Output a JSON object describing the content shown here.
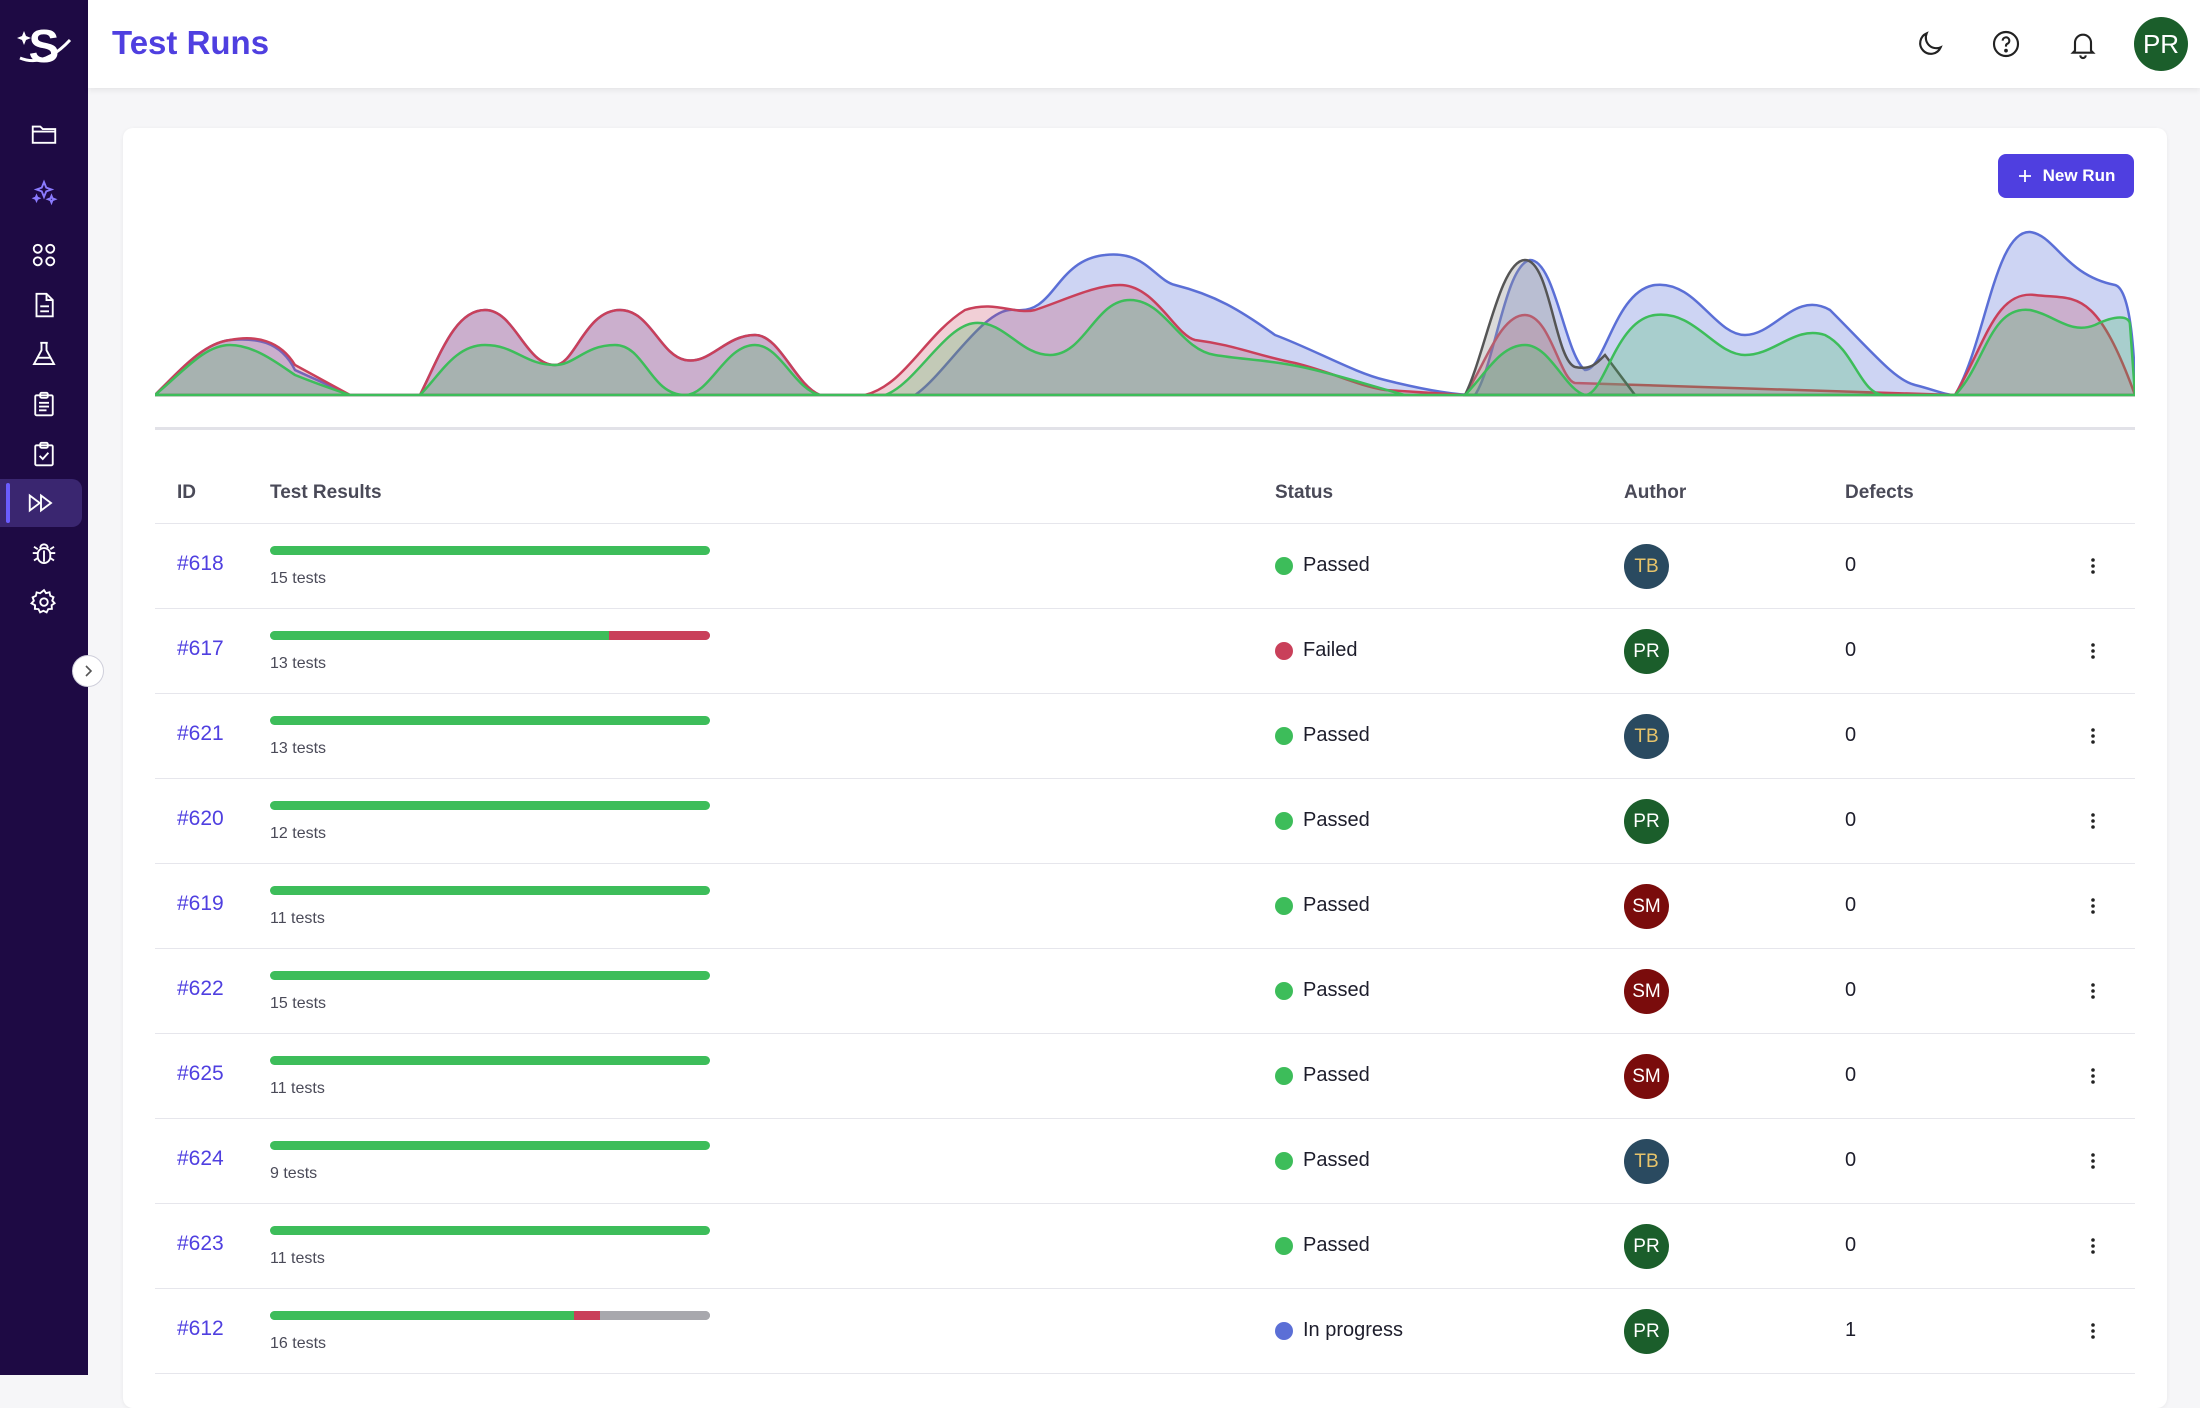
{
  "header": {
    "title": "Test Runs",
    "avatar": "PR"
  },
  "toolbar": {
    "new_run_label": "New Run"
  },
  "colors": {
    "accent": "#4f3fe0",
    "passed": "#3dbd5a",
    "failed": "#c9405a",
    "in_progress": "#5b6fd6",
    "skipped": "#a8a8ad",
    "sidebar": "#1e0a44"
  },
  "sidebar": {
    "items": [
      {
        "name": "folder-icon"
      },
      {
        "name": "sparkles-icon"
      },
      {
        "name": "grid-icon"
      },
      {
        "name": "document-icon"
      },
      {
        "name": "flask-icon"
      },
      {
        "name": "clipboard-list-icon"
      },
      {
        "name": "clipboard-check-icon"
      },
      {
        "name": "fast-forward-icon",
        "active": true
      },
      {
        "name": "bug-icon"
      },
      {
        "name": "gear-icon"
      }
    ]
  },
  "table": {
    "columns": {
      "id": "ID",
      "results": "Test Results",
      "status": "Status",
      "author": "Author",
      "defects": "Defects"
    },
    "rows": [
      {
        "id": "#618",
        "tests": "15 tests",
        "passed": 1,
        "failed": 0,
        "skipped": 0,
        "status": "Passed",
        "author": "TB",
        "defects": "0"
      },
      {
        "id": "#617",
        "tests": "13 tests",
        "passed": 0.77,
        "failed": 0.23,
        "skipped": 0,
        "status": "Failed",
        "author": "PR",
        "defects": "0"
      },
      {
        "id": "#621",
        "tests": "13 tests",
        "passed": 1,
        "failed": 0,
        "skipped": 0,
        "status": "Passed",
        "author": "TB",
        "defects": "0"
      },
      {
        "id": "#620",
        "tests": "12 tests",
        "passed": 1,
        "failed": 0,
        "skipped": 0,
        "status": "Passed",
        "author": "PR",
        "defects": "0"
      },
      {
        "id": "#619",
        "tests": "11 tests",
        "passed": 1,
        "failed": 0,
        "skipped": 0,
        "status": "Passed",
        "author": "SM",
        "defects": "0"
      },
      {
        "id": "#622",
        "tests": "15 tests",
        "passed": 1,
        "failed": 0,
        "skipped": 0,
        "status": "Passed",
        "author": "SM",
        "defects": "0"
      },
      {
        "id": "#625",
        "tests": "11 tests",
        "passed": 1,
        "failed": 0,
        "skipped": 0,
        "status": "Passed",
        "author": "SM",
        "defects": "0"
      },
      {
        "id": "#624",
        "tests": "9 tests",
        "passed": 1,
        "failed": 0,
        "skipped": 0,
        "status": "Passed",
        "author": "TB",
        "defects": "0"
      },
      {
        "id": "#623",
        "tests": "11 tests",
        "passed": 1,
        "failed": 0,
        "skipped": 0,
        "status": "Passed",
        "author": "PR",
        "defects": "0"
      },
      {
        "id": "#612",
        "tests": "16 tests",
        "passed": 0.69,
        "failed": 0.06,
        "skipped": 0.25,
        "status": "In progress",
        "author": "PR",
        "defects": "1"
      }
    ]
  },
  "authors": {
    "TB": {
      "bg": "#2a4a60",
      "fg": "#e8c46a"
    },
    "PR": {
      "bg": "#1b5e2b",
      "fg": "#ffffff"
    },
    "SM": {
      "bg": "#7a0c0c",
      "fg": "#ffffff"
    }
  }
}
